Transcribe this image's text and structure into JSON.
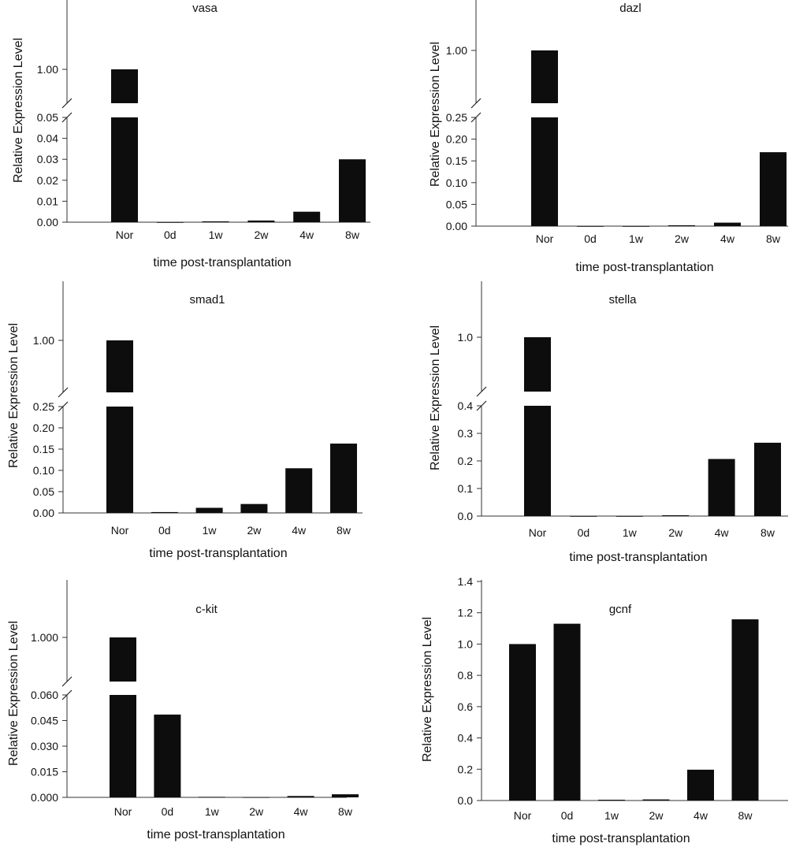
{
  "chart_data": [
    {
      "type": "bar",
      "title": "vasa",
      "xlabel": "time post-transplantation",
      "ylabel": "Relative Expression Level",
      "categories": [
        "Nor",
        "0d",
        "1w",
        "2w",
        "4w",
        "8w"
      ],
      "values": [
        1.0,
        0.0,
        0.0004,
        0.0008,
        0.005,
        0.03
      ],
      "broken_axis": true,
      "lower_ylim": [
        0,
        0.05
      ],
      "lower_ticks": [
        "0.00",
        "0.01",
        "0.02",
        "0.03",
        "0.04",
        "0.05"
      ],
      "upper_ticks": [
        "1.00"
      ],
      "upper_tick_value": 1.0
    },
    {
      "type": "bar",
      "title": "dazl",
      "xlabel": "time post-transplantation",
      "ylabel": "Relative Expression Level",
      "categories": [
        "Nor",
        "0d",
        "1w",
        "2w",
        "4w",
        "8w"
      ],
      "values": [
        1.0,
        0.0,
        0.0,
        0.002,
        0.008,
        0.17
      ],
      "broken_axis": true,
      "lower_ylim": [
        0,
        0.25
      ],
      "lower_ticks": [
        "0.00",
        "0.05",
        "0.10",
        "0.15",
        "0.20",
        "0.25"
      ],
      "upper_ticks": [
        "1.00"
      ],
      "upper_tick_value": 1.0
    },
    {
      "type": "bar",
      "title": "smad1",
      "xlabel": "time post-transplantation",
      "ylabel": "Relative Expression Level",
      "categories": [
        "Nor",
        "0d",
        "1w",
        "2w",
        "4w",
        "8w"
      ],
      "values": [
        1.0,
        0.002,
        0.012,
        0.021,
        0.105,
        0.163
      ],
      "broken_axis": true,
      "lower_ylim": [
        0,
        0.25
      ],
      "lower_ticks": [
        "0.00",
        "0.05",
        "0.10",
        "0.15",
        "0.20",
        "0.25"
      ],
      "upper_ticks": [
        "1.00"
      ],
      "upper_tick_value": 1.0
    },
    {
      "type": "bar",
      "title": "stella",
      "xlabel": "time post-transplantation",
      "ylabel": "Relative Expression Level",
      "categories": [
        "Nor",
        "0d",
        "1w",
        "2w",
        "4w",
        "8w"
      ],
      "values": [
        1.0,
        0.0,
        0.0,
        0.003,
        0.207,
        0.266
      ],
      "broken_axis": true,
      "lower_ylim": [
        0,
        0.4
      ],
      "lower_ticks": [
        "0.0",
        "0.1",
        "0.2",
        "0.3",
        "0.4"
      ],
      "upper_ticks": [
        "1.0"
      ],
      "upper_tick_value": 1.0
    },
    {
      "type": "bar",
      "title": "c-kit",
      "xlabel": "time post-transplantation",
      "ylabel": "Relative Expression Level",
      "categories": [
        "Nor",
        "0d",
        "1w",
        "2w",
        "4w",
        "8w"
      ],
      "values": [
        1.0,
        0.0485,
        0.0003,
        0.0001,
        0.0008,
        0.0018
      ],
      "broken_axis": true,
      "lower_ylim": [
        0,
        0.06
      ],
      "lower_ticks": [
        "0.000",
        "0.015",
        "0.030",
        "0.045",
        "0.060"
      ],
      "upper_ticks": [
        "1.000"
      ],
      "upper_tick_value": 1.0
    },
    {
      "type": "bar",
      "title": "gcnf",
      "xlabel": "time post-transplantation",
      "ylabel": "Relative Expression Level",
      "categories": [
        "Nor",
        "0d",
        "1w",
        "2w",
        "4w",
        "8w"
      ],
      "values": [
        1.0,
        1.13,
        0.005,
        0.007,
        0.197,
        1.158
      ],
      "broken_axis": false,
      "ylim": [
        0,
        1.4
      ],
      "ticks": [
        "0.0",
        "0.2",
        "0.4",
        "0.6",
        "0.8",
        "1.0",
        "1.2",
        "1.4"
      ]
    }
  ]
}
